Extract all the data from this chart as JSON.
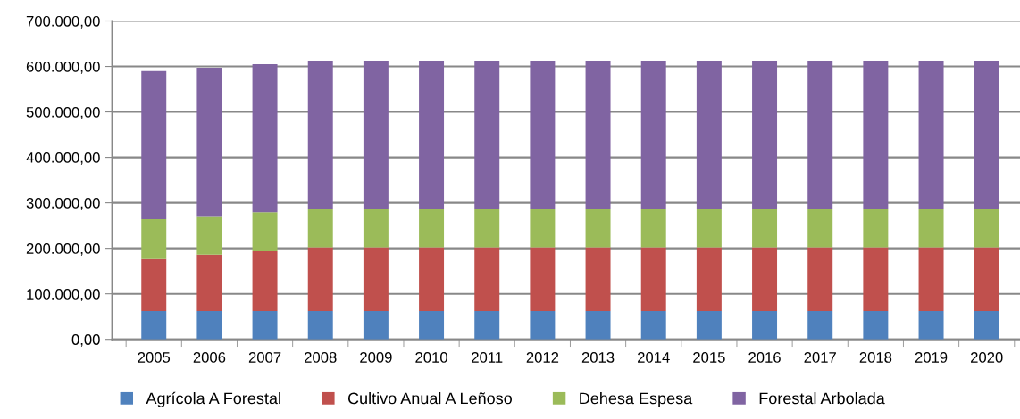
{
  "chart_data": {
    "type": "bar",
    "stacked": true,
    "categories": [
      "2005",
      "2006",
      "2007",
      "2008",
      "2009",
      "2010",
      "2011",
      "2012",
      "2013",
      "2014",
      "2015",
      "2016",
      "2017",
      "2018",
      "2019",
      "2020"
    ],
    "series": [
      {
        "name": "Agrícola A Forestal",
        "color": "#4f81bd",
        "values": [
          62000,
          62000,
          62000,
          62000,
          62000,
          62000,
          62000,
          62000,
          62000,
          62000,
          62000,
          62000,
          62000,
          62000,
          62000,
          62000
        ]
      },
      {
        "name": "Cultivo Anual A Leñoso",
        "color": "#c0504d",
        "values": [
          116000,
          124000,
          132000,
          140000,
          140000,
          140000,
          140000,
          140000,
          140000,
          140000,
          140000,
          140000,
          140000,
          140000,
          140000,
          140000
        ]
      },
      {
        "name": "Dehesa Espesa",
        "color": "#9bbb59",
        "values": [
          86000,
          85000,
          85000,
          85000,
          85000,
          85000,
          85000,
          85000,
          85000,
          85000,
          85000,
          85000,
          85000,
          85000,
          85000,
          85000
        ]
      },
      {
        "name": "Forestal Arbolada",
        "color": "#8064a2",
        "values": [
          326000,
          326000,
          326000,
          326000,
          326000,
          326000,
          326000,
          326000,
          326000,
          326000,
          326000,
          326000,
          326000,
          326000,
          326000,
          326000
        ]
      }
    ],
    "ylim": [
      0,
      700000
    ],
    "yticks": [
      {
        "value": 0,
        "label": "0,00"
      },
      {
        "value": 100000,
        "label": "100.000,00"
      },
      {
        "value": 200000,
        "label": "200.000,00"
      },
      {
        "value": 300000,
        "label": "300.000,00"
      },
      {
        "value": 400000,
        "label": "400.000,00"
      },
      {
        "value": 500000,
        "label": "500.000,00"
      },
      {
        "value": 600000,
        "label": "600.000,00"
      },
      {
        "value": 700000,
        "label": "700.000,00"
      }
    ],
    "grid": "y",
    "legend": "bottom"
  }
}
